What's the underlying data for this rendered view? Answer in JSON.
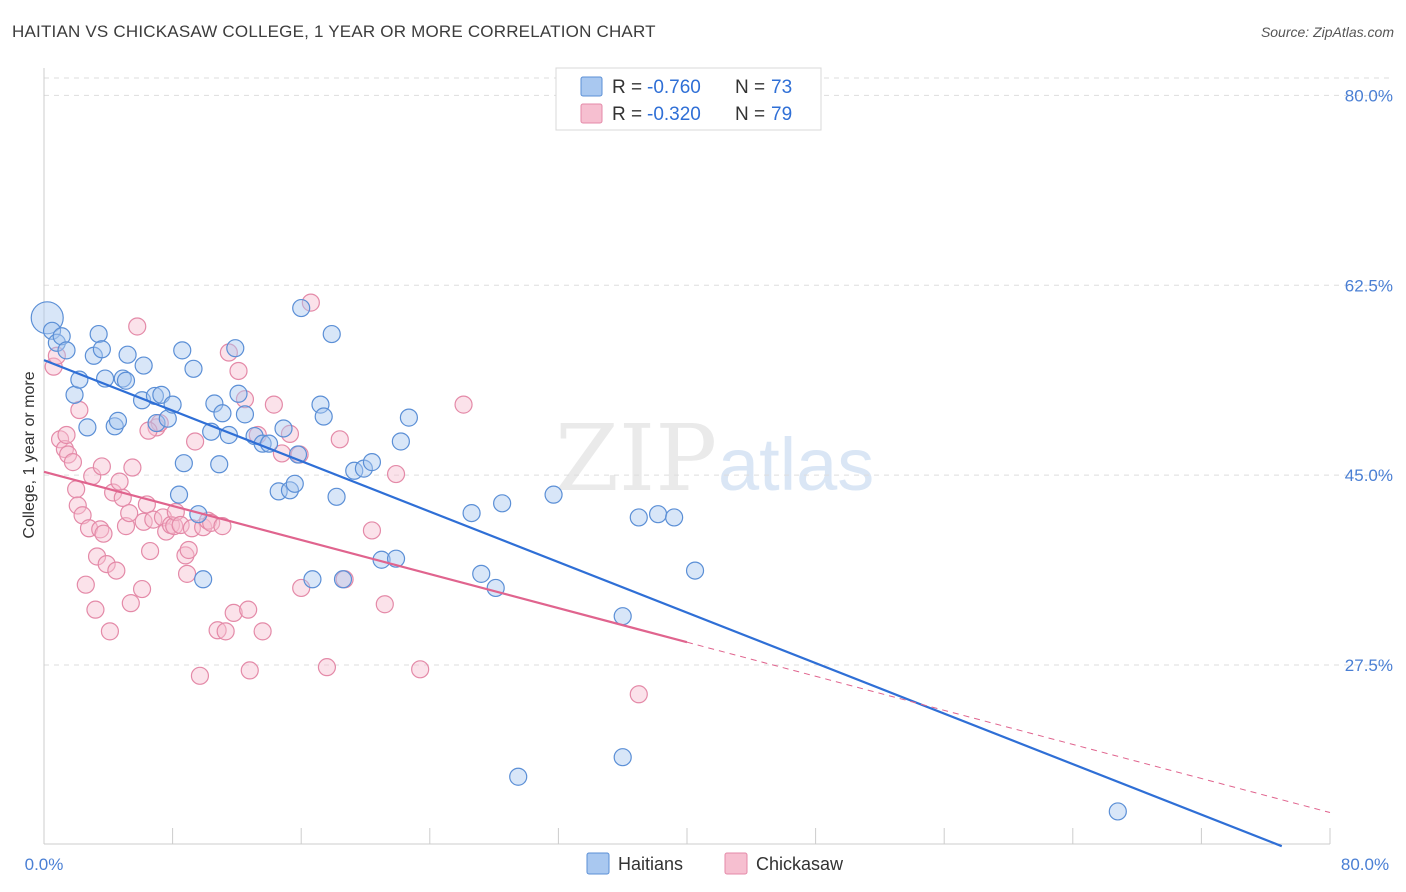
{
  "header": {
    "title": "HAITIAN VS CHICKASAW COLLEGE, 1 YEAR OR MORE CORRELATION CHART",
    "source": "Source: ZipAtlas.com"
  },
  "watermark": {
    "zip": "ZIP",
    "atlas": "atlas"
  },
  "colors": {
    "haitians_fill": "#a9c8f0",
    "haitians_stroke": "#5b8fd6",
    "haitians_line": "#2f6fd6",
    "chickasaw_fill": "#f6bfd0",
    "chickasaw_stroke": "#e48aa8",
    "chickasaw_line": "#e0648e",
    "grid": "#dddddd",
    "axis_text": "#4a7fd4"
  },
  "legend": {
    "r_label": "R =",
    "n_label": "N =",
    "haitians": {
      "r": "-0.760",
      "n": "73"
    },
    "chickasaw": {
      "r": "-0.320",
      "n": "79"
    }
  },
  "bottom_legend": {
    "haitians": "Haitians",
    "chickasaw": "Chickasaw"
  },
  "chart_data": {
    "type": "scatter",
    "xlabel": "",
    "ylabel": "College, 1 year or more",
    "xlim": [
      0,
      80
    ],
    "ylim": [
      11,
      84
    ],
    "x_tick_labels": {
      "left": "0.0%",
      "right": "80.0%"
    },
    "y_ticks": [
      {
        "value": 80.0,
        "label": "80.0%"
      },
      {
        "value": 62.5,
        "label": "62.5%"
      },
      {
        "value": 45.0,
        "label": "45.0%"
      },
      {
        "value": 27.5,
        "label": "27.5%"
      }
    ],
    "grid": true,
    "legend_position": "top-center",
    "series": [
      {
        "name": "Haitians",
        "trend": {
          "x": [
            0,
            77
          ],
          "y": [
            55.6,
            10.8
          ],
          "dashed_extension": null
        },
        "points": [
          [
            0.2,
            59.5
          ],
          [
            0.5,
            58.3
          ],
          [
            0.8,
            57.2
          ],
          [
            1.1,
            57.8
          ],
          [
            1.4,
            56.5
          ],
          [
            1.9,
            52.4
          ],
          [
            2.2,
            53.8
          ],
          [
            2.7,
            49.4
          ],
          [
            3.1,
            56.0
          ],
          [
            3.4,
            58.0
          ],
          [
            3.6,
            56.6
          ],
          [
            3.8,
            53.9
          ],
          [
            4.4,
            49.5
          ],
          [
            4.6,
            50.0
          ],
          [
            4.9,
            53.9
          ],
          [
            5.1,
            53.7
          ],
          [
            5.2,
            56.1
          ],
          [
            6.1,
            51.9
          ],
          [
            6.2,
            55.1
          ],
          [
            6.9,
            52.3
          ],
          [
            7.0,
            49.8
          ],
          [
            7.3,
            52.4
          ],
          [
            7.7,
            50.2
          ],
          [
            8.0,
            51.5
          ],
          [
            8.4,
            43.2
          ],
          [
            8.6,
            56.5
          ],
          [
            8.7,
            46.1
          ],
          [
            9.3,
            54.8
          ],
          [
            9.6,
            41.4
          ],
          [
            9.9,
            35.4
          ],
          [
            10.4,
            49.0
          ],
          [
            10.6,
            51.6
          ],
          [
            10.9,
            46.0
          ],
          [
            11.1,
            50.7
          ],
          [
            11.5,
            48.7
          ],
          [
            11.9,
            56.7
          ],
          [
            12.1,
            52.5
          ],
          [
            12.5,
            50.6
          ],
          [
            13.1,
            48.6
          ],
          [
            13.6,
            47.9
          ],
          [
            14.0,
            47.9
          ],
          [
            14.6,
            43.5
          ],
          [
            14.9,
            49.3
          ],
          [
            15.3,
            43.6
          ],
          [
            15.6,
            44.2
          ],
          [
            15.8,
            46.9
          ],
          [
            16.0,
            60.4
          ],
          [
            16.7,
            35.4
          ],
          [
            17.2,
            51.5
          ],
          [
            17.4,
            50.4
          ],
          [
            17.9,
            58.0
          ],
          [
            18.2,
            43.0
          ],
          [
            18.6,
            35.4
          ],
          [
            19.3,
            45.4
          ],
          [
            19.9,
            45.6
          ],
          [
            20.4,
            46.2
          ],
          [
            21.0,
            37.2
          ],
          [
            21.9,
            37.3
          ],
          [
            22.2,
            48.1
          ],
          [
            22.7,
            50.3
          ],
          [
            26.6,
            41.5
          ],
          [
            27.2,
            35.9
          ],
          [
            28.1,
            34.6
          ],
          [
            28.5,
            42.4
          ],
          [
            31.7,
            43.2
          ],
          [
            36.0,
            32.0
          ],
          [
            37.0,
            41.1
          ],
          [
            38.2,
            41.4
          ],
          [
            39.2,
            41.1
          ],
          [
            40.5,
            36.2
          ],
          [
            29.5,
            17.2
          ],
          [
            36.0,
            19.0
          ],
          [
            66.8,
            14.0
          ]
        ]
      },
      {
        "name": "Chickasaw",
        "trend": {
          "x": [
            0,
            40
          ],
          "y": [
            45.3,
            29.6
          ],
          "dashed_extension": {
            "x": [
              40,
              80
            ],
            "y": [
              29.6,
              13.9
            ]
          }
        },
        "points": [
          [
            0.6,
            55.0
          ],
          [
            0.8,
            56.0
          ],
          [
            1.0,
            48.3
          ],
          [
            1.3,
            47.4
          ],
          [
            1.4,
            48.7
          ],
          [
            1.5,
            46.9
          ],
          [
            1.8,
            46.2
          ],
          [
            2.0,
            43.7
          ],
          [
            2.1,
            42.2
          ],
          [
            2.4,
            41.3
          ],
          [
            2.6,
            34.9
          ],
          [
            2.8,
            40.1
          ],
          [
            3.0,
            44.9
          ],
          [
            3.2,
            32.6
          ],
          [
            3.3,
            37.5
          ],
          [
            3.5,
            40.0
          ],
          [
            3.7,
            39.6
          ],
          [
            3.9,
            36.8
          ],
          [
            4.1,
            30.6
          ],
          [
            4.3,
            43.4
          ],
          [
            4.5,
            36.2
          ],
          [
            4.7,
            44.4
          ],
          [
            4.9,
            42.9
          ],
          [
            5.1,
            40.3
          ],
          [
            5.3,
            41.5
          ],
          [
            5.5,
            45.7
          ],
          [
            5.8,
            58.7
          ],
          [
            6.1,
            34.5
          ],
          [
            6.2,
            40.7
          ],
          [
            6.4,
            42.3
          ],
          [
            6.6,
            38.0
          ],
          [
            6.8,
            40.9
          ],
          [
            7.0,
            49.4
          ],
          [
            7.2,
            49.8
          ],
          [
            7.4,
            41.1
          ],
          [
            7.6,
            39.8
          ],
          [
            7.9,
            40.4
          ],
          [
            8.1,
            40.3
          ],
          [
            8.2,
            41.6
          ],
          [
            8.5,
            40.4
          ],
          [
            8.8,
            37.6
          ],
          [
            8.9,
            35.9
          ],
          [
            9.2,
            40.1
          ],
          [
            9.4,
            48.1
          ],
          [
            9.7,
            26.5
          ],
          [
            9.9,
            40.2
          ],
          [
            10.2,
            40.8
          ],
          [
            10.4,
            40.6
          ],
          [
            10.8,
            30.7
          ],
          [
            11.1,
            40.3
          ],
          [
            11.3,
            30.6
          ],
          [
            11.5,
            56.3
          ],
          [
            11.8,
            32.3
          ],
          [
            12.1,
            54.6
          ],
          [
            12.5,
            52.0
          ],
          [
            12.7,
            32.6
          ],
          [
            13.3,
            48.7
          ],
          [
            13.6,
            30.6
          ],
          [
            14.3,
            51.5
          ],
          [
            15.3,
            48.8
          ],
          [
            15.9,
            46.9
          ],
          [
            16.0,
            34.6
          ],
          [
            16.6,
            60.9
          ],
          [
            17.6,
            27.3
          ],
          [
            18.4,
            48.3
          ],
          [
            18.7,
            35.4
          ],
          [
            20.4,
            39.9
          ],
          [
            21.2,
            33.1
          ],
          [
            21.9,
            45.1
          ],
          [
            23.4,
            27.1
          ],
          [
            26.1,
            51.5
          ],
          [
            37.0,
            24.8
          ],
          [
            12.8,
            27.0
          ],
          [
            3.6,
            45.8
          ],
          [
            5.4,
            33.2
          ],
          [
            2.2,
            51.0
          ],
          [
            6.5,
            49.1
          ],
          [
            9.0,
            38.1
          ],
          [
            14.8,
            47.0
          ]
        ]
      }
    ]
  }
}
